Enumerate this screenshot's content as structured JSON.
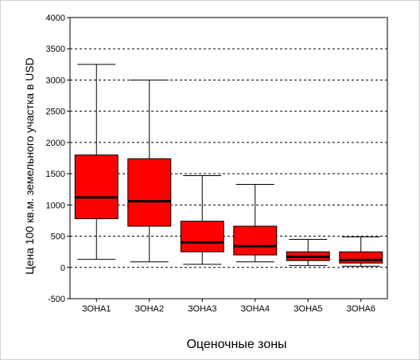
{
  "chart_data": {
    "type": "box",
    "xlabel": "Оценочные зоны",
    "ylabel": "Цена 100 кв.м. земельного участка в USD",
    "ylim": [
      -500,
      4000
    ],
    "yticks": [
      -500,
      0,
      500,
      1000,
      1500,
      2000,
      2500,
      3000,
      3500,
      4000
    ],
    "grid": "horizontal-dashed",
    "box_color": "#ff0000",
    "categories": [
      "ЗОНА1",
      "ЗОНА2",
      "ЗОНА3",
      "ЗОНА4",
      "ЗОНА5",
      "ЗОНА6"
    ],
    "boxes": [
      {
        "whisker_low": 130,
        "q1": 780,
        "median": 1120,
        "q3": 1800,
        "whisker_high": 3250
      },
      {
        "whisker_low": 90,
        "q1": 660,
        "median": 1060,
        "q3": 1740,
        "whisker_high": 3000
      },
      {
        "whisker_low": 50,
        "q1": 250,
        "median": 400,
        "q3": 740,
        "whisker_high": 1470
      },
      {
        "whisker_low": 90,
        "q1": 200,
        "median": 340,
        "q3": 660,
        "whisker_high": 1330
      },
      {
        "whisker_low": 30,
        "q1": 110,
        "median": 170,
        "q3": 250,
        "whisker_high": 450
      },
      {
        "whisker_low": 20,
        "q1": 70,
        "median": 120,
        "q3": 250,
        "whisker_high": 490
      }
    ]
  }
}
